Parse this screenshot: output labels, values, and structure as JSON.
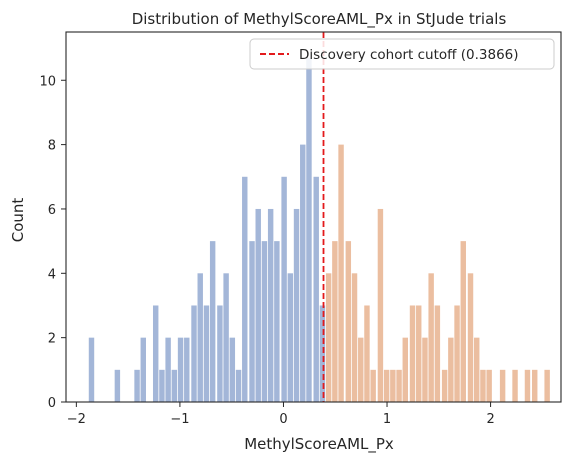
{
  "chart_data": {
    "type": "bar",
    "title": "Distribution of MethylScoreAML_Px in StJude trials",
    "xlabel": "MethylScoreAML_Px",
    "ylabel": "Count",
    "xlim": [
      -2.1,
      2.68
    ],
    "ylim": [
      0,
      11.5
    ],
    "x_ticks": [
      -2,
      -1,
      0,
      1,
      2
    ],
    "x_tick_labels": [
      "−2",
      "−1",
      "0",
      "1",
      "2"
    ],
    "y_ticks": [
      0,
      2,
      4,
      6,
      8,
      10
    ],
    "y_tick_labels": [
      "0",
      "2",
      "4",
      "6",
      "8",
      "10"
    ],
    "bin_width": 0.0621,
    "grid": false,
    "legend_position": "top-right",
    "cutoff": {
      "value": 0.3866,
      "label": "Discovery cohort cutoff (0.3866)",
      "color": "#e31a1c",
      "style": "dashed"
    },
    "series": [
      {
        "group": "below-cutoff",
        "color": "#a3b6d8",
        "bins": [
          {
            "x": -1.88,
            "count": 2
          },
          {
            "x": -1.63,
            "count": 1
          },
          {
            "x": -1.44,
            "count": 1
          },
          {
            "x": -1.38,
            "count": 2
          },
          {
            "x": -1.26,
            "count": 3
          },
          {
            "x": -1.2,
            "count": 1
          },
          {
            "x": -1.14,
            "count": 2
          },
          {
            "x": -1.08,
            "count": 1
          },
          {
            "x": -1.02,
            "count": 2
          },
          {
            "x": -0.96,
            "count": 2
          },
          {
            "x": -0.89,
            "count": 3
          },
          {
            "x": -0.83,
            "count": 4
          },
          {
            "x": -0.77,
            "count": 3
          },
          {
            "x": -0.71,
            "count": 5
          },
          {
            "x": -0.64,
            "count": 3
          },
          {
            "x": -0.58,
            "count": 4
          },
          {
            "x": -0.52,
            "count": 2
          },
          {
            "x": -0.46,
            "count": 1
          },
          {
            "x": -0.4,
            "count": 7
          },
          {
            "x": -0.33,
            "count": 5
          },
          {
            "x": -0.27,
            "count": 6
          },
          {
            "x": -0.21,
            "count": 5
          },
          {
            "x": -0.15,
            "count": 6
          },
          {
            "x": -0.09,
            "count": 5
          },
          {
            "x": -0.02,
            "count": 7
          },
          {
            "x": 0.04,
            "count": 4
          },
          {
            "x": 0.1,
            "count": 6
          },
          {
            "x": 0.16,
            "count": 8
          },
          {
            "x": 0.22,
            "count": 10.7
          },
          {
            "x": 0.29,
            "count": 7
          },
          {
            "x": 0.35,
            "count": 3
          }
        ]
      },
      {
        "group": "above-cutoff",
        "color": "#ebbea0",
        "bins": [
          {
            "x": 0.41,
            "count": 4
          },
          {
            "x": 0.47,
            "count": 5
          },
          {
            "x": 0.53,
            "count": 8
          },
          {
            "x": 0.6,
            "count": 5
          },
          {
            "x": 0.66,
            "count": 4
          },
          {
            "x": 0.72,
            "count": 2
          },
          {
            "x": 0.78,
            "count": 3
          },
          {
            "x": 0.84,
            "count": 1
          },
          {
            "x": 0.91,
            "count": 6
          },
          {
            "x": 0.97,
            "count": 1
          },
          {
            "x": 1.03,
            "count": 1
          },
          {
            "x": 1.09,
            "count": 1
          },
          {
            "x": 1.15,
            "count": 2
          },
          {
            "x": 1.22,
            "count": 3
          },
          {
            "x": 1.28,
            "count": 3
          },
          {
            "x": 1.34,
            "count": 2
          },
          {
            "x": 1.4,
            "count": 4
          },
          {
            "x": 1.46,
            "count": 3
          },
          {
            "x": 1.53,
            "count": 1
          },
          {
            "x": 1.59,
            "count": 2
          },
          {
            "x": 1.65,
            "count": 3
          },
          {
            "x": 1.71,
            "count": 5
          },
          {
            "x": 1.78,
            "count": 4
          },
          {
            "x": 1.84,
            "count": 2
          },
          {
            "x": 1.9,
            "count": 1
          },
          {
            "x": 1.96,
            "count": 1
          },
          {
            "x": 2.09,
            "count": 1
          },
          {
            "x": 2.21,
            "count": 1
          },
          {
            "x": 2.33,
            "count": 1
          },
          {
            "x": 2.4,
            "count": 1
          },
          {
            "x": 2.52,
            "count": 1
          }
        ]
      }
    ]
  }
}
